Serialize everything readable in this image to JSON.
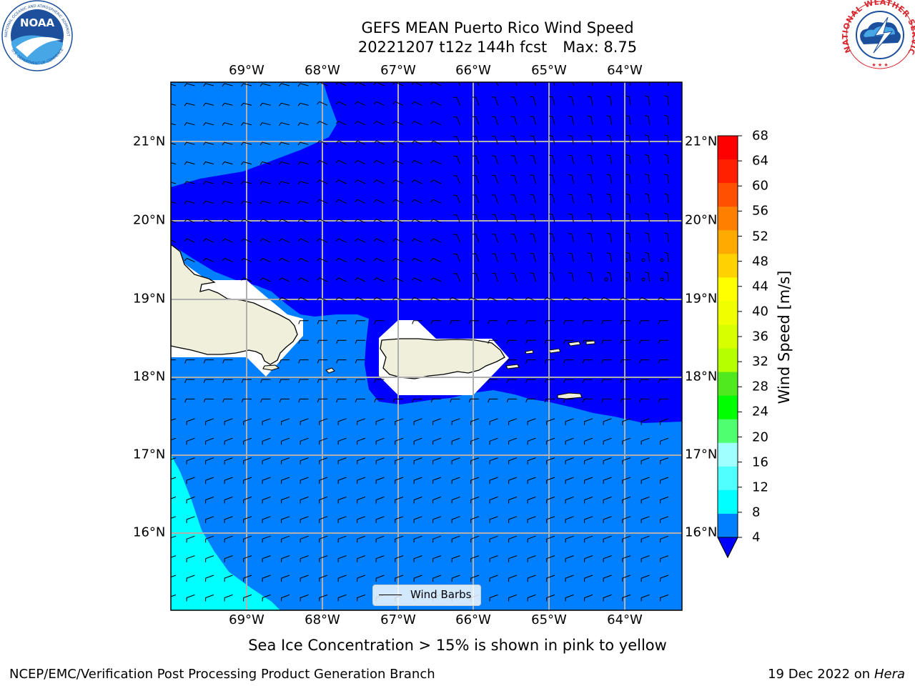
{
  "title": {
    "line1": "GEFS MEAN Puerto Rico Wind Speed",
    "run": "20221207 t12z 144h fcst",
    "max": "Max: 8.75"
  },
  "map": {
    "lon_labels": [
      "69°W",
      "68°W",
      "67°W",
      "66°W",
      "65°W",
      "64°W"
    ],
    "lat_labels": [
      "21°N",
      "20°N",
      "19°N",
      "18°N",
      "17°N",
      "16°N"
    ],
    "legend_label": "Wind Barbs"
  },
  "colorbar": {
    "label": "Wind Speed [m/s]",
    "ticks": [
      "68",
      "64",
      "60",
      "56",
      "52",
      "48",
      "44",
      "40",
      "36",
      "32",
      "28",
      "24",
      "20",
      "16",
      "12",
      "8",
      "4"
    ],
    "colors": [
      "#ff0000",
      "#ff2000",
      "#ff5000",
      "#ff7f00",
      "#ffaa00",
      "#ffd200",
      "#ffff00",
      "#f0ff00",
      "#d8ff00",
      "#b5ff00",
      "#50e81f",
      "#00ff00",
      "#50ff70",
      "#a0ffff",
      "#50ffff",
      "#00ffff",
      "#0080ff"
    ],
    "under_color": "#0000ff"
  },
  "note": "Sea Ice Concentration > 15% is shown in pink to yellow",
  "footer": {
    "left": "NCEP/EMC/Verification Post Processing Product Generation Branch",
    "date": "19 Dec 2022 on",
    "machine": "Hera"
  },
  "logos": {
    "noaa": "NOAA",
    "noaa_ring": "NATIONAL OCEANIC AND ATMOSPHERIC ADMINISTRATION",
    "noaa_ring_bottom": "U.S. DEPARTMENT OF COMMERCE",
    "nws_ring": "NATIONAL WEATHER SERVICE"
  }
}
